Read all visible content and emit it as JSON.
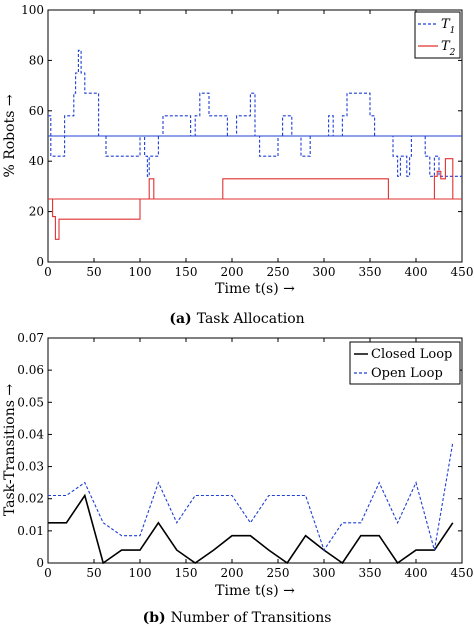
{
  "chart_data": [
    {
      "type": "line",
      "caption_tag": "(a)",
      "caption_text": "Task Allocation",
      "xlabel": "Time t(s) →",
      "ylabel": "% Robots →",
      "xlim": [
        0,
        450
      ],
      "ylim": [
        0,
        100
      ],
      "xticks": [
        0,
        50,
        100,
        150,
        200,
        250,
        300,
        350,
        400,
        450
      ],
      "yticks": [
        0,
        20,
        40,
        60,
        80,
        100
      ],
      "legend_position": "top-right",
      "grid": false,
      "series": [
        {
          "name": "T1",
          "color": "#1f3fd6",
          "style": "dashed",
          "x": [
            0,
            3,
            3,
            18,
            18,
            28,
            28,
            30,
            30,
            33,
            33,
            36,
            36,
            40,
            40,
            55,
            55,
            63,
            63,
            100,
            100,
            105,
            105,
            108,
            108,
            110,
            110,
            120,
            120,
            125,
            125,
            155,
            155,
            160,
            160,
            165,
            165,
            175,
            175,
            195,
            195,
            205,
            205,
            220,
            220,
            225,
            225,
            230,
            230,
            250,
            250,
            255,
            255,
            265,
            265,
            275,
            275,
            285,
            285,
            305,
            305,
            310,
            310,
            320,
            320,
            325,
            325,
            350,
            350,
            355,
            355,
            375,
            375,
            380,
            380,
            383,
            383,
            390,
            390,
            393,
            393,
            395,
            395,
            410,
            410,
            415,
            415,
            420,
            420,
            425,
            425,
            430,
            430,
            450
          ],
          "y": [
            58,
            58,
            42,
            42,
            58,
            58,
            67,
            67,
            75,
            75,
            84,
            84,
            75,
            75,
            67,
            67,
            50,
            50,
            42,
            42,
            50,
            50,
            42,
            42,
            34,
            34,
            42,
            42,
            50,
            50,
            58,
            58,
            50,
            50,
            58,
            58,
            67,
            67,
            58,
            58,
            50,
            50,
            58,
            58,
            67,
            67,
            50,
            50,
            42,
            42,
            50,
            50,
            58,
            58,
            50,
            50,
            42,
            42,
            50,
            50,
            58,
            58,
            50,
            50,
            58,
            58,
            67,
            67,
            58,
            58,
            50,
            50,
            42,
            42,
            34,
            34,
            42,
            42,
            34,
            34,
            42,
            42,
            50,
            50,
            42,
            42,
            34,
            34,
            42,
            42,
            34,
            34,
            34,
            34
          ]
        },
        {
          "name": "T2",
          "color": "#e03131",
          "style": "solid",
          "x": [
            0,
            5,
            5,
            8,
            8,
            12,
            12,
            100,
            100,
            110,
            110,
            115,
            115,
            120,
            120,
            190,
            190,
            370,
            370,
            420,
            420,
            423,
            423,
            427,
            427,
            432,
            432,
            440,
            440,
            450
          ],
          "y": [
            25,
            25,
            18,
            18,
            9,
            9,
            17,
            17,
            25,
            25,
            33,
            33,
            25,
            25,
            25,
            25,
            33,
            33,
            25,
            25,
            34,
            34,
            36,
            36,
            33,
            33,
            41,
            41,
            25,
            25
          ]
        },
        {
          "name": "",
          "color": "#1f3fd6",
          "style": "solid",
          "x": [
            0,
            450
          ],
          "y": [
            50,
            50
          ]
        },
        {
          "name": "",
          "color": "#e03131",
          "style": "solid",
          "x": [
            0,
            450
          ],
          "y": [
            25,
            25
          ]
        }
      ]
    },
    {
      "type": "line",
      "caption_tag": "(b)",
      "caption_text": "Number of Transitions",
      "xlabel": "Time t(s) →",
      "ylabel": "Task-Transitions →",
      "xlim": [
        0,
        450
      ],
      "ylim": [
        0,
        0.07
      ],
      "xticks": [
        0,
        50,
        100,
        150,
        200,
        250,
        300,
        350,
        400,
        450
      ],
      "xtick_labels": [
        "0",
        "50",
        "100",
        "150",
        "200",
        "250",
        "300",
        "350",
        "400",
        "450"
      ],
      "yticks": [
        0,
        0.01,
        0.02,
        0.03,
        0.04,
        0.05,
        0.06,
        0.07
      ],
      "ytick_labels": [
        "0",
        "0.01",
        "0.02",
        "0.03",
        "0.04",
        "0.05",
        "0.06",
        "0.07"
      ],
      "legend_position": "top-right",
      "grid": false,
      "series": [
        {
          "name": "Closed Loop",
          "color": "#000000",
          "style": "solid",
          "x": [
            0,
            20,
            40,
            60,
            80,
            100,
            120,
            140,
            160,
            180,
            200,
            220,
            240,
            260,
            280,
            300,
            320,
            340,
            360,
            380,
            400,
            420,
            440
          ],
          "y": [
            0.0125,
            0.0125,
            0.021,
            0.0,
            0.004,
            0.004,
            0.0125,
            0.004,
            0.0,
            0.004,
            0.0085,
            0.0085,
            0.004,
            0.0,
            0.0085,
            0.004,
            0.0,
            0.0085,
            0.0085,
            0.0,
            0.004,
            0.004,
            0.0125
          ]
        },
        {
          "name": "Open Loop",
          "color": "#1f3fd6",
          "style": "dashed",
          "x": [
            0,
            20,
            40,
            60,
            80,
            100,
            120,
            140,
            160,
            180,
            200,
            220,
            240,
            260,
            280,
            300,
            320,
            340,
            360,
            380,
            400,
            420,
            440
          ],
          "y": [
            0.021,
            0.021,
            0.025,
            0.0125,
            0.0085,
            0.0085,
            0.025,
            0.0125,
            0.021,
            0.021,
            0.021,
            0.0125,
            0.021,
            0.021,
            0.021,
            0.004,
            0.0125,
            0.0125,
            0.025,
            0.0125,
            0.025,
            0.004,
            0.0375
          ]
        }
      ]
    }
  ]
}
